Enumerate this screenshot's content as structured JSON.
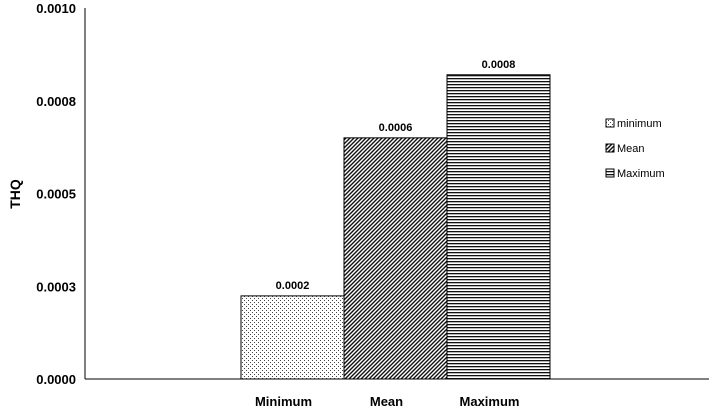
{
  "chart_data": {
    "type": "bar",
    "title": "",
    "xlabel": "",
    "ylabel": "THQ",
    "ylim": [
      0,
      0.001
    ],
    "yticks": [
      "0.0000",
      "0.0003",
      "0.0005",
      "0.0008",
      "0.0010"
    ],
    "categories": [
      "Minimum",
      "Mean",
      "Maximum"
    ],
    "series": [
      {
        "name": "minimum",
        "category": "Minimum",
        "value": 0.000224,
        "label": "0.0002",
        "pattern": "dots"
      },
      {
        "name": "Mean",
        "category": "Mean",
        "value": 0.00065,
        "label": "0.0006",
        "pattern": "diagonal"
      },
      {
        "name": "Maximum",
        "category": "Maximum",
        "value": 0.00082,
        "label": "0.0008",
        "pattern": "horizontal"
      }
    ],
    "grid": false,
    "legend_position": "right"
  }
}
